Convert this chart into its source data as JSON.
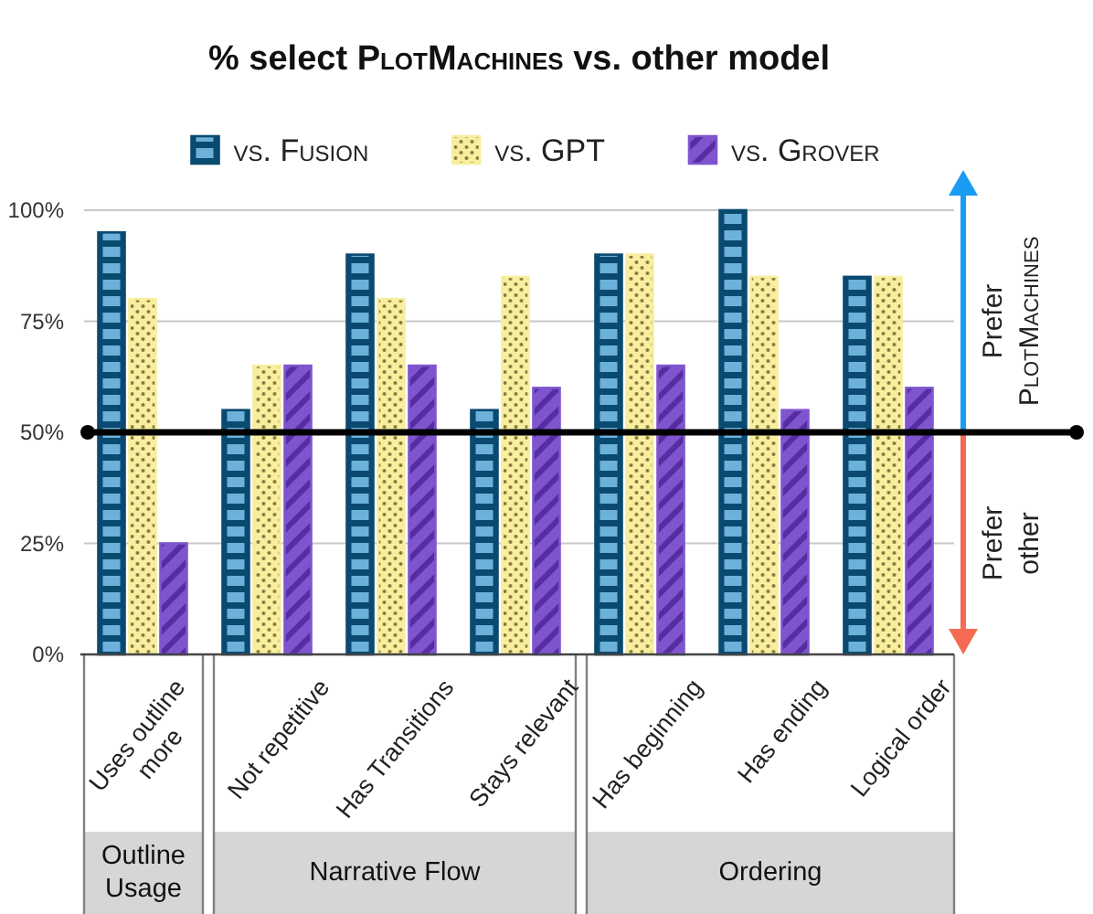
{
  "chart_data": {
    "type": "bar",
    "title": "% select PlotMachines vs. other model",
    "categories": [
      "Uses outline more",
      "Not repetitive",
      "Has Transitions",
      "Stays relevant",
      "Has beginning",
      "Has ending",
      "Logical order"
    ],
    "series": [
      {
        "name": "vs. Fusion",
        "color": "#0b4a70",
        "values": [
          95,
          55,
          90,
          55,
          90,
          100,
          85
        ]
      },
      {
        "name": "vs. GPT",
        "color": "#f8ee9e",
        "values": [
          80,
          65,
          80,
          85,
          90,
          85,
          85
        ]
      },
      {
        "name": "vs. Grover",
        "color": "#7f55cf",
        "values": [
          25,
          65,
          65,
          60,
          65,
          55,
          60
        ]
      }
    ],
    "ylim": [
      0,
      100
    ],
    "yticks": [
      {
        "value": 0,
        "label": "0%"
      },
      {
        "value": 25,
        "label": "25%"
      },
      {
        "value": 50,
        "label": "50%"
      },
      {
        "value": 75,
        "label": "75%"
      },
      {
        "value": 100,
        "label": "100%"
      }
    ],
    "grid": "y",
    "legend": "top",
    "ref_lines": [
      {
        "axis": "y",
        "value": 50,
        "color": "#000000"
      }
    ],
    "annotations": [
      "Prefer PlotMachines",
      "Prefer other",
      "Outline Usage",
      "Narrative Flow",
      "Ordering"
    ]
  }
}
